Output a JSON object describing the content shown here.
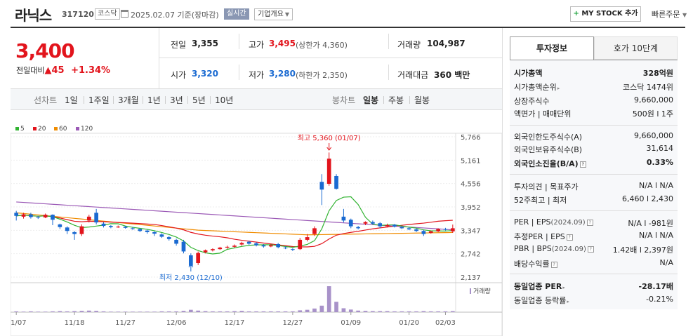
{
  "header": {
    "name": "라닉스",
    "code": "317120",
    "market": "코스닥",
    "date": "2025.02.07  기준(장마감)",
    "realtime": "실시간",
    "company": "기업개요",
    "mystock_plus": "+",
    "mystock": "MY STOCK 추가",
    "quick_order": "빠른주문"
  },
  "price": {
    "current": "3,400",
    "change_label": "전일대비",
    "change_arrow": "▲",
    "change": "45",
    "change_pct": "+1.34%"
  },
  "stats": {
    "prev_label": "전일",
    "prev": "3,355",
    "high_label": "고가",
    "high": "3,495",
    "upper_limit": "(상한가 4,360)",
    "volume_label": "거래량",
    "volume": "104,987",
    "open_label": "시가",
    "open": "3,320",
    "low_label": "저가",
    "low": "3,280",
    "lower_limit": "(하한가 2,350)",
    "amount_label": "거래대금",
    "amount": "360 백만"
  },
  "period": {
    "line_label": "선차트",
    "line_items": [
      "1일",
      "1주일",
      "3개월",
      "1년",
      "3년",
      "5년",
      "10년"
    ],
    "candle_label": "봉차트",
    "candle_items": [
      "일봉",
      "주봉",
      "월봉"
    ],
    "active": "일봉"
  },
  "chart_data": {
    "type": "candlestick",
    "ma_legend": [
      {
        "name": "5",
        "color": "#31b331"
      },
      {
        "name": "20",
        "color": "#e2141c"
      },
      {
        "name": "60",
        "color": "#f08c00"
      },
      {
        "name": "120",
        "color": "#9b59b6"
      }
    ],
    "y_ticks": [
      "5,766",
      "5,161",
      "4,556",
      "3,952",
      "3,347",
      "2,742",
      "2,137"
    ],
    "ylim": [
      2137,
      5766
    ],
    "x_ticks": [
      "11/07",
      "11/18",
      "11/27",
      "12/06",
      "12/17",
      "12/27",
      "01/09",
      "01/20",
      "02/03"
    ],
    "max_annotation": "최고 5,360 (01/07)",
    "min_annotation": "최저 2,430 (12/10)",
    "volume_label": "거래량",
    "candles": [
      {
        "o": 3800,
        "c": 3720,
        "h": 3850,
        "l": 3600
      },
      {
        "o": 3700,
        "c": 3760,
        "h": 3800,
        "l": 3650
      },
      {
        "o": 3760,
        "c": 3690,
        "h": 3800,
        "l": 3650
      },
      {
        "o": 3690,
        "c": 3680,
        "h": 3720,
        "l": 3640
      },
      {
        "o": 3680,
        "c": 3750,
        "h": 3780,
        "l": 3660
      },
      {
        "o": 3750,
        "c": 3620,
        "h": 3760,
        "l": 3480
      },
      {
        "o": 3500,
        "c": 3430,
        "h": 3520,
        "l": 3380
      },
      {
        "o": 3420,
        "c": 3330,
        "h": 3450,
        "l": 3250
      },
      {
        "o": 3300,
        "c": 3250,
        "h": 3330,
        "l": 3100
      },
      {
        "o": 3250,
        "c": 3450,
        "h": 3500,
        "l": 3200
      },
      {
        "o": 3600,
        "c": 3700,
        "h": 3750,
        "l": 3550
      },
      {
        "o": 3800,
        "c": 3550,
        "h": 3900,
        "l": 3500
      },
      {
        "o": 3520,
        "c": 3460,
        "h": 3560,
        "l": 3420
      },
      {
        "o": 3460,
        "c": 3430,
        "h": 3480,
        "l": 3400
      },
      {
        "o": 3430,
        "c": 3440,
        "h": 3470,
        "l": 3410
      },
      {
        "o": 3440,
        "c": 3410,
        "h": 3460,
        "l": 3390
      },
      {
        "o": 3400,
        "c": 3380,
        "h": 3430,
        "l": 3360
      },
      {
        "o": 3380,
        "c": 3330,
        "h": 3400,
        "l": 3300
      },
      {
        "o": 3340,
        "c": 3300,
        "h": 3360,
        "l": 3260
      },
      {
        "o": 3300,
        "c": 3260,
        "h": 3320,
        "l": 3200
      },
      {
        "o": 3240,
        "c": 3180,
        "h": 3270,
        "l": 3150
      },
      {
        "o": 3170,
        "c": 3120,
        "h": 3200,
        "l": 3080
      },
      {
        "o": 3100,
        "c": 3000,
        "h": 3130,
        "l": 2950
      },
      {
        "o": 3050,
        "c": 2800,
        "h": 3100,
        "l": 2750
      },
      {
        "o": 2700,
        "c": 2430,
        "h": 2750,
        "l": 2430
      },
      {
        "o": 2500,
        "c": 2760,
        "h": 2800,
        "l": 2450
      },
      {
        "o": 2780,
        "c": 2830,
        "h": 2850,
        "l": 2750
      },
      {
        "o": 2830,
        "c": 2860,
        "h": 2880,
        "l": 2800
      },
      {
        "o": 2860,
        "c": 2900,
        "h": 2920,
        "l": 2840
      },
      {
        "o": 2900,
        "c": 2920,
        "h": 2950,
        "l": 2870
      },
      {
        "o": 2920,
        "c": 2950,
        "h": 2980,
        "l": 2900
      },
      {
        "o": 2980,
        "c": 3020,
        "h": 3050,
        "l": 2950
      },
      {
        "o": 3050,
        "c": 3000,
        "h": 3080,
        "l": 2970
      },
      {
        "o": 3010,
        "c": 2960,
        "h": 3040,
        "l": 2930
      },
      {
        "o": 2960,
        "c": 2930,
        "h": 2990,
        "l": 2900
      },
      {
        "o": 2930,
        "c": 2960,
        "h": 2990,
        "l": 2910
      },
      {
        "o": 2990,
        "c": 2910,
        "h": 3020,
        "l": 2880
      },
      {
        "o": 2900,
        "c": 2880,
        "h": 2930,
        "l": 2860
      },
      {
        "o": 2860,
        "c": 2850,
        "h": 2880,
        "l": 2810
      },
      {
        "o": 2860,
        "c": 3100,
        "h": 3150,
        "l": 2840
      },
      {
        "o": 3100,
        "c": 3170,
        "h": 3250,
        "l": 3060
      },
      {
        "o": 3250,
        "c": 3400,
        "h": 3450,
        "l": 3200
      },
      {
        "o": 4600,
        "c": 4400,
        "h": 4800,
        "l": 4000
      },
      {
        "o": 4550,
        "c": 5200,
        "h": 5360,
        "l": 4500
      },
      {
        "o": 4750,
        "c": 4420,
        "h": 4800,
        "l": 4400
      },
      {
        "o": 3700,
        "c": 3600,
        "h": 3900,
        "l": 3550
      },
      {
        "o": 3620,
        "c": 3450,
        "h": 3650,
        "l": 3400
      },
      {
        "o": 3430,
        "c": 3400,
        "h": 3460,
        "l": 3370
      },
      {
        "o": 3520,
        "c": 3560,
        "h": 3580,
        "l": 3480
      },
      {
        "o": 3560,
        "c": 3520,
        "h": 3600,
        "l": 3500
      },
      {
        "o": 3530,
        "c": 3450,
        "h": 3560,
        "l": 3400
      },
      {
        "o": 3450,
        "c": 3480,
        "h": 3520,
        "l": 3420
      },
      {
        "o": 3490,
        "c": 3440,
        "h": 3510,
        "l": 3420
      },
      {
        "o": 3430,
        "c": 3400,
        "h": 3450,
        "l": 3380
      },
      {
        "o": 3400,
        "c": 3370,
        "h": 3430,
        "l": 3350
      },
      {
        "o": 3370,
        "c": 3330,
        "h": 3400,
        "l": 3300
      },
      {
        "o": 3330,
        "c": 3250,
        "h": 3360,
        "l": 3200
      },
      {
        "o": 3280,
        "c": 3320,
        "h": 3340,
        "l": 3260
      },
      {
        "o": 3320,
        "c": 3380,
        "h": 3400,
        "l": 3300
      },
      {
        "o": 3380,
        "c": 3360,
        "h": 3410,
        "l": 3340
      },
      {
        "o": 3320,
        "c": 3400,
        "h": 3495,
        "l": 3280
      }
    ],
    "volumes": [
      3,
      2,
      3,
      2,
      2,
      3,
      4,
      3,
      4,
      5,
      6,
      5,
      3,
      2,
      2,
      2,
      2,
      2,
      2,
      2,
      3,
      3,
      3,
      5,
      9,
      6,
      4,
      3,
      3,
      3,
      4,
      5,
      3,
      3,
      3,
      3,
      3,
      3,
      3,
      7,
      9,
      14,
      25,
      100,
      40,
      15,
      10,
      6,
      5,
      4,
      4,
      4,
      3,
      3,
      3,
      3,
      4,
      3,
      3,
      3,
      4
    ]
  },
  "info": {
    "tab_active": "투자정보",
    "tab_inactive": "호가 10단계",
    "rows": [
      {
        "label": "시가총액",
        "value": "328억원"
      },
      {
        "label": "시가총액순위",
        "value": "코스닥 1474위"
      },
      {
        "label": "상장주식수",
        "value": "9,660,000"
      },
      {
        "label": "액면가 | 매매단위",
        "value": "500원  l  1주"
      },
      {
        "label": "외국인한도주식수(A)",
        "value": "9,660,000"
      },
      {
        "label": "외국인보유주식수(B)",
        "value": "31,614"
      },
      {
        "label": "외국인소진율(B/A)",
        "value": "0.33%"
      },
      {
        "label": "투자의견 | 목표주가",
        "value": "N/A  l  N/A"
      },
      {
        "label": "52주최고 | 최저",
        "value": "6,460  l  2,430"
      },
      {
        "label": "PER | EPS",
        "sub": "(2024.09)",
        "value": "N/A  l  -981원"
      },
      {
        "label": "추정PER | EPS",
        "value": "N/A  l  N/A"
      },
      {
        "label": "PBR | BPS",
        "sub": "(2024.09)",
        "value": "1.42배  l  2,397원"
      },
      {
        "label": "배당수익률",
        "value": "N/A"
      },
      {
        "label": "동일업종 PER",
        "value": "-28.17배"
      },
      {
        "label": "동일업종 등락률",
        "value": "-0.21%"
      }
    ]
  }
}
